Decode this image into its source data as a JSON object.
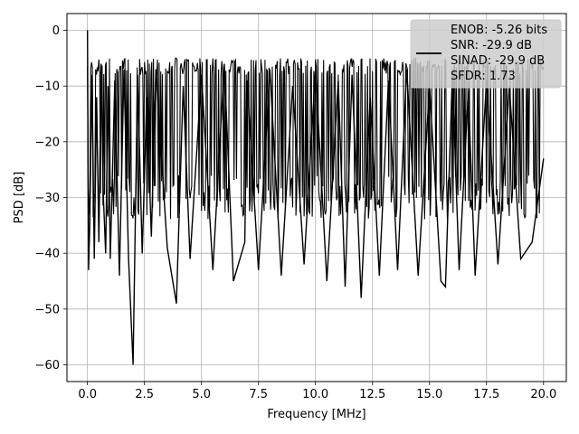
{
  "chart_data": {
    "type": "line",
    "title": "",
    "xlabel": "Frequency [MHz]",
    "ylabel": "PSD [dB]",
    "xlim": [
      -0.9,
      21.0
    ],
    "ylim": [
      -63,
      3
    ],
    "xticks": [
      0.0,
      2.5,
      5.0,
      7.5,
      10.0,
      12.5,
      15.0,
      17.5,
      20.0
    ],
    "xtick_labels": [
      "0.0",
      "2.5",
      "5.0",
      "7.5",
      "10.0",
      "12.5",
      "15.0",
      "17.5",
      "20.0"
    ],
    "yticks": [
      0,
      -10,
      -20,
      -30,
      -40,
      -50,
      -60
    ],
    "ytick_labels": [
      "0",
      "−10",
      "−20",
      "−30",
      "−40",
      "−50",
      "−60"
    ],
    "grid": true,
    "legend_position": "top-right",
    "legend_entries": [
      "ENOB: -5.26 bits",
      "SNR: -29.9 dB",
      "SINAD: -29.9 dB",
      "SFDR: 1.73"
    ],
    "series": [
      {
        "color": "#000000",
        "description": "dense noise-like PSD trace",
        "x": [
          0.0,
          0.05,
          0.1,
          0.2,
          0.3,
          0.4,
          0.5,
          0.6,
          0.7,
          0.8,
          0.9,
          1.0,
          1.2,
          1.4,
          1.6,
          1.8,
          2.0,
          2.2,
          2.4,
          2.6,
          2.8,
          3.0,
          3.5,
          3.9,
          4.2,
          4.5,
          5.0,
          5.5,
          6.0,
          6.4,
          6.9,
          7.0,
          7.5,
          8.0,
          8.5,
          9.0,
          9.5,
          10.0,
          10.5,
          11.0,
          11.3,
          11.6,
          12.0,
          12.4,
          12.8,
          13.2,
          13.6,
          14.0,
          14.5,
          15.0,
          15.5,
          15.7,
          16.0,
          16.3,
          16.7,
          17.0,
          17.5,
          18.0,
          18.5,
          19.0,
          19.5,
          20.0
        ],
        "y": [
          0.0,
          -43,
          -35,
          -8,
          -41,
          -12,
          -38,
          -6,
          -30,
          -40,
          -10,
          -41,
          -9,
          -44,
          -7,
          -41,
          -60,
          -8,
          -40,
          -12,
          -37,
          -7,
          -39,
          -49,
          -10,
          -41,
          -8,
          -43,
          -6,
          -45,
          -38,
          -9,
          -43,
          -7,
          -44,
          -10,
          -42,
          -7,
          -45,
          -9,
          -46,
          -8,
          -48,
          -12,
          -44,
          -9,
          -43,
          -7,
          -44,
          -10,
          -45,
          -46,
          -8,
          -43,
          -11,
          -44,
          -9,
          -42,
          -10,
          -41,
          -38,
          -23
        ]
      }
    ]
  }
}
